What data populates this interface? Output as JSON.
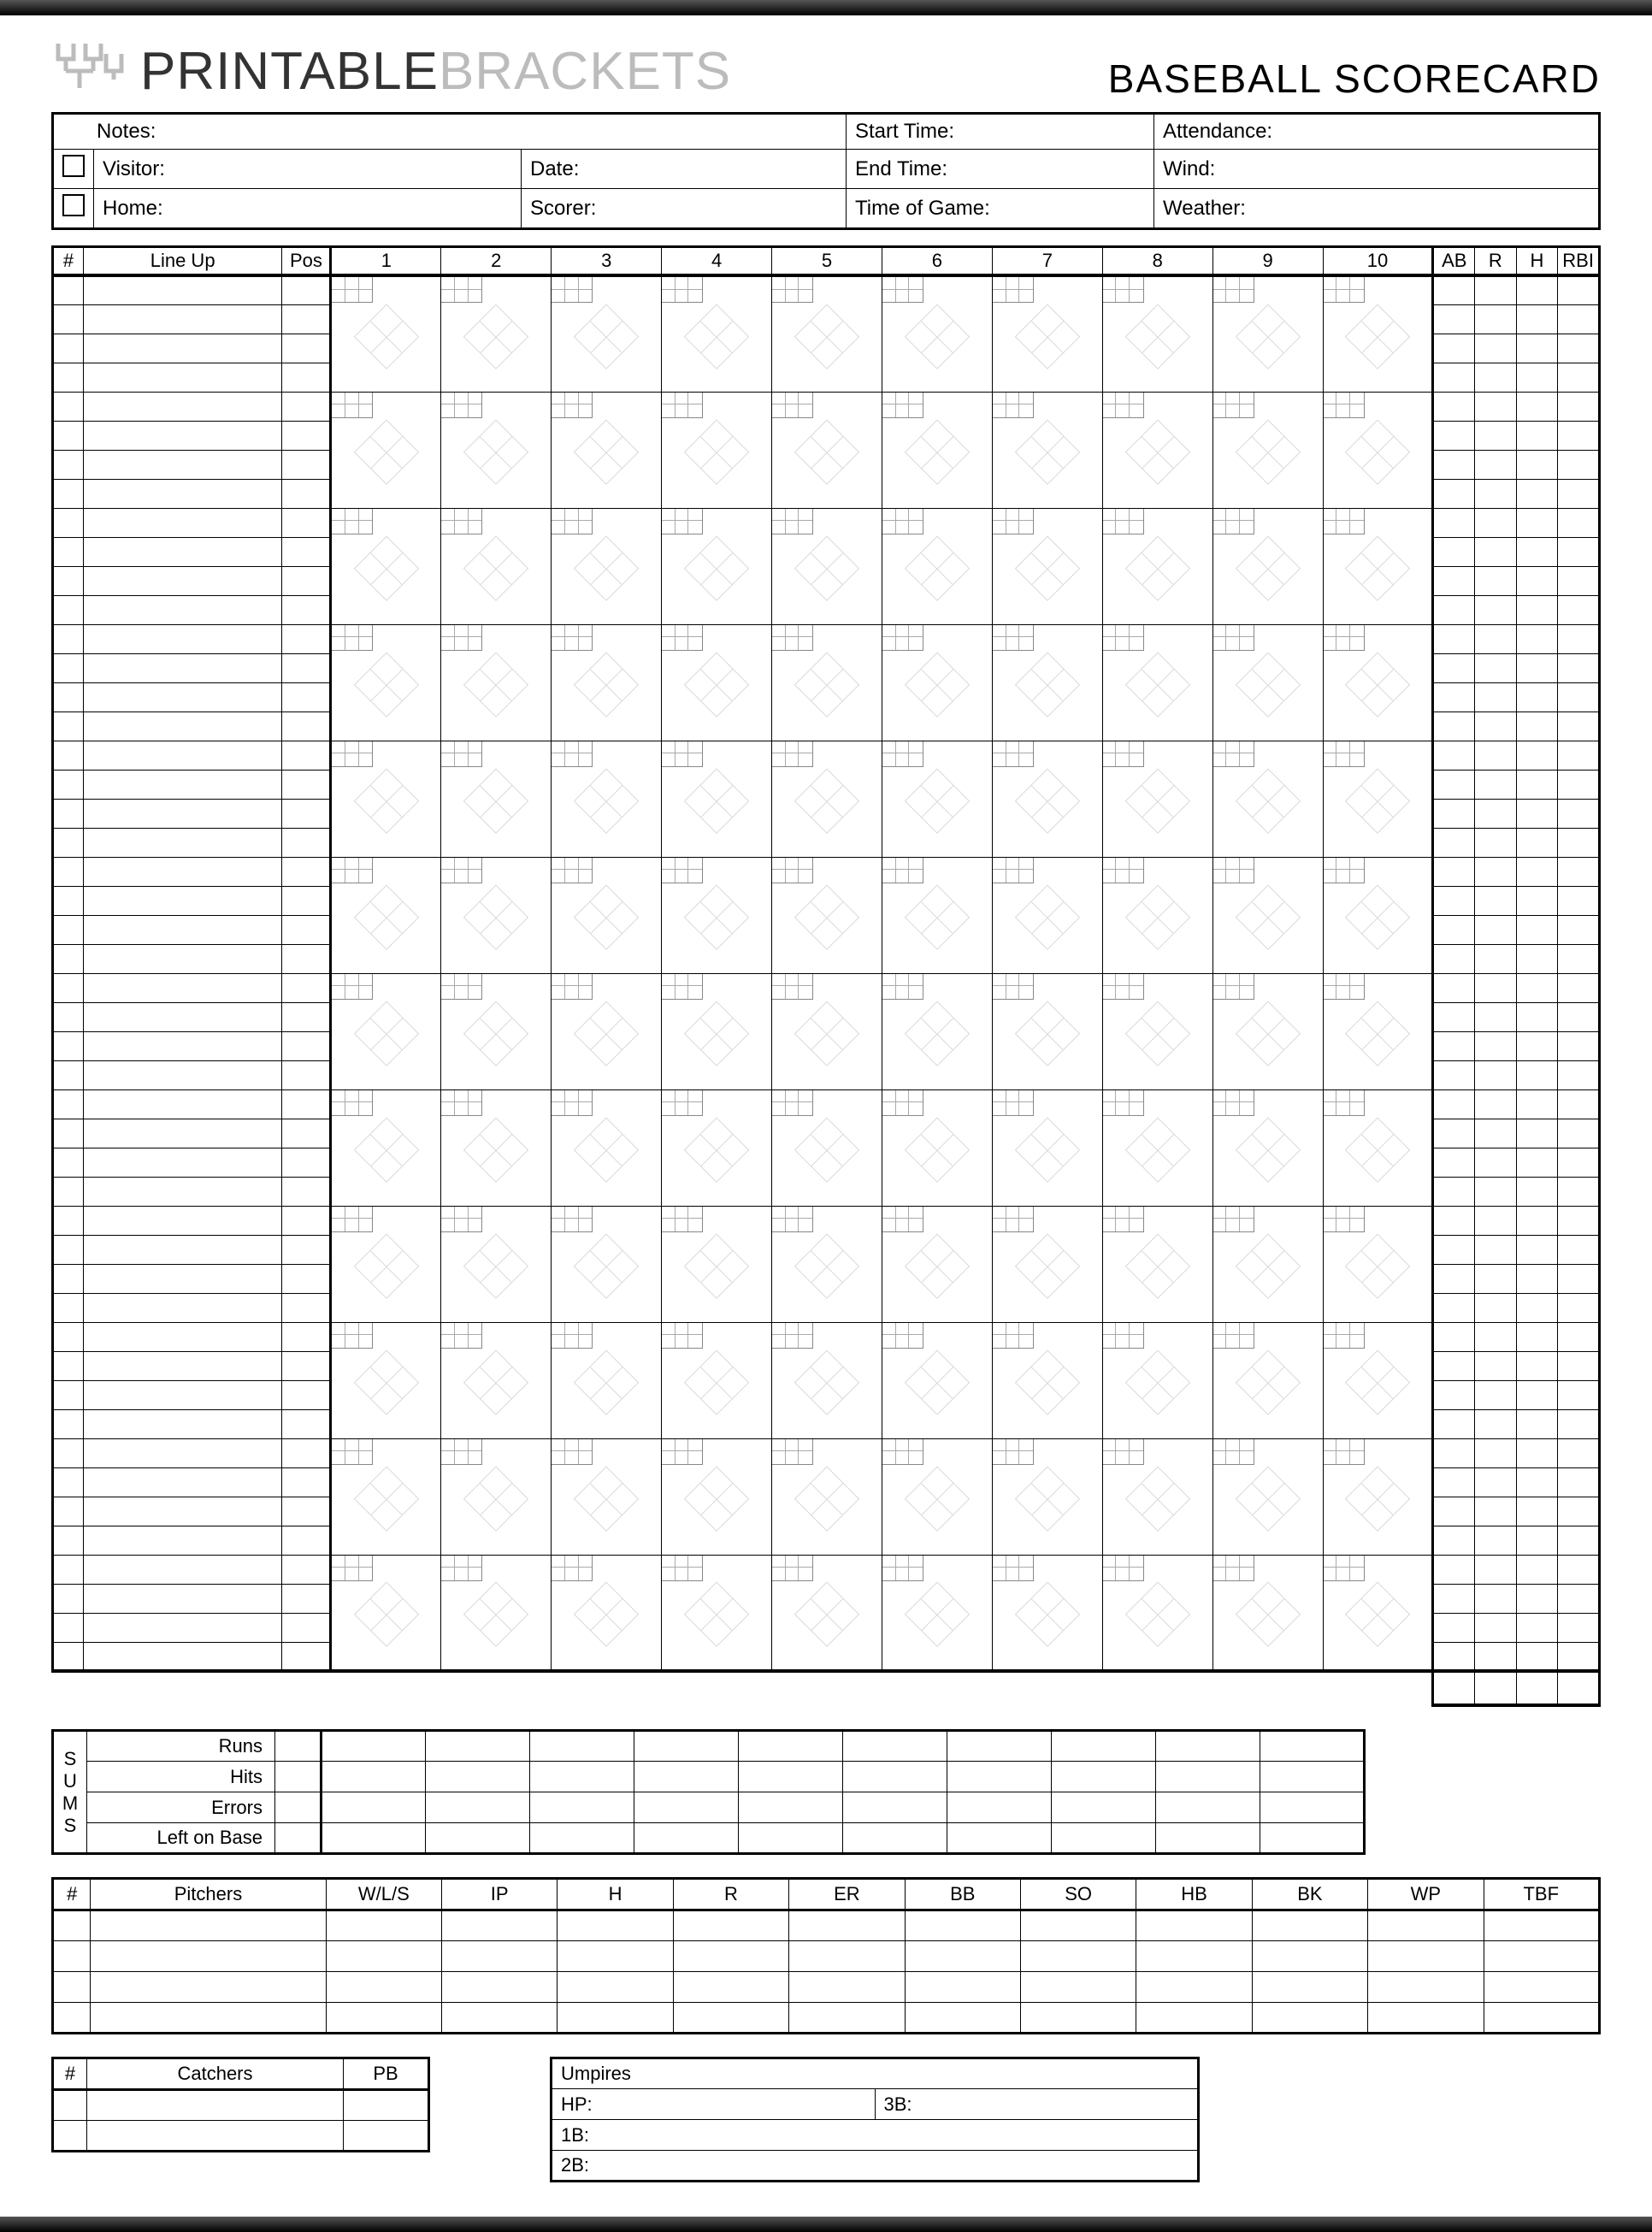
{
  "brand": {
    "word1": "PRINTABLE",
    "word2": "BRACKETS"
  },
  "title": "BASEBALL SCORECARD",
  "info": {
    "notes": "Notes:",
    "visitor": "Visitor:",
    "home": "Home:",
    "date": "Date:",
    "scorer": "Scorer:",
    "start": "Start Time:",
    "end": "End Time:",
    "tog": "Time of Game:",
    "attendance": "Attendance:",
    "wind": "Wind:",
    "weather": "Weather:"
  },
  "score_headers": {
    "num": "#",
    "lineup": "Line Up",
    "pos": "Pos",
    "innings": [
      "1",
      "2",
      "3",
      "4",
      "5",
      "6",
      "7",
      "8",
      "9",
      "10"
    ],
    "stats": [
      "AB",
      "R",
      "H",
      "RBI"
    ]
  },
  "layout": {
    "batters": 12,
    "lineup_sub_rows": 4,
    "stat_sub_rows": 4
  },
  "sums": {
    "side_label": [
      "S",
      "U",
      "M",
      "S"
    ],
    "rows": [
      "Runs",
      "Hits",
      "Errors",
      "Left on Base"
    ]
  },
  "pitchers": {
    "headers": [
      "#",
      "Pitchers",
      "W/L/S",
      "IP",
      "H",
      "R",
      "ER",
      "BB",
      "SO",
      "HB",
      "BK",
      "WP",
      "TBF"
    ],
    "rows": 4
  },
  "catchers": {
    "headers": [
      "#",
      "Catchers",
      "PB"
    ],
    "rows": 2
  },
  "umpires": {
    "title": "Umpires",
    "hp": "HP:",
    "b1": "1B:",
    "b2": "2B:",
    "b3": "3B:"
  },
  "colors": {
    "diamond": "#d8d8d8",
    "border": "#000000",
    "grey_text": "#bcbcbc"
  }
}
